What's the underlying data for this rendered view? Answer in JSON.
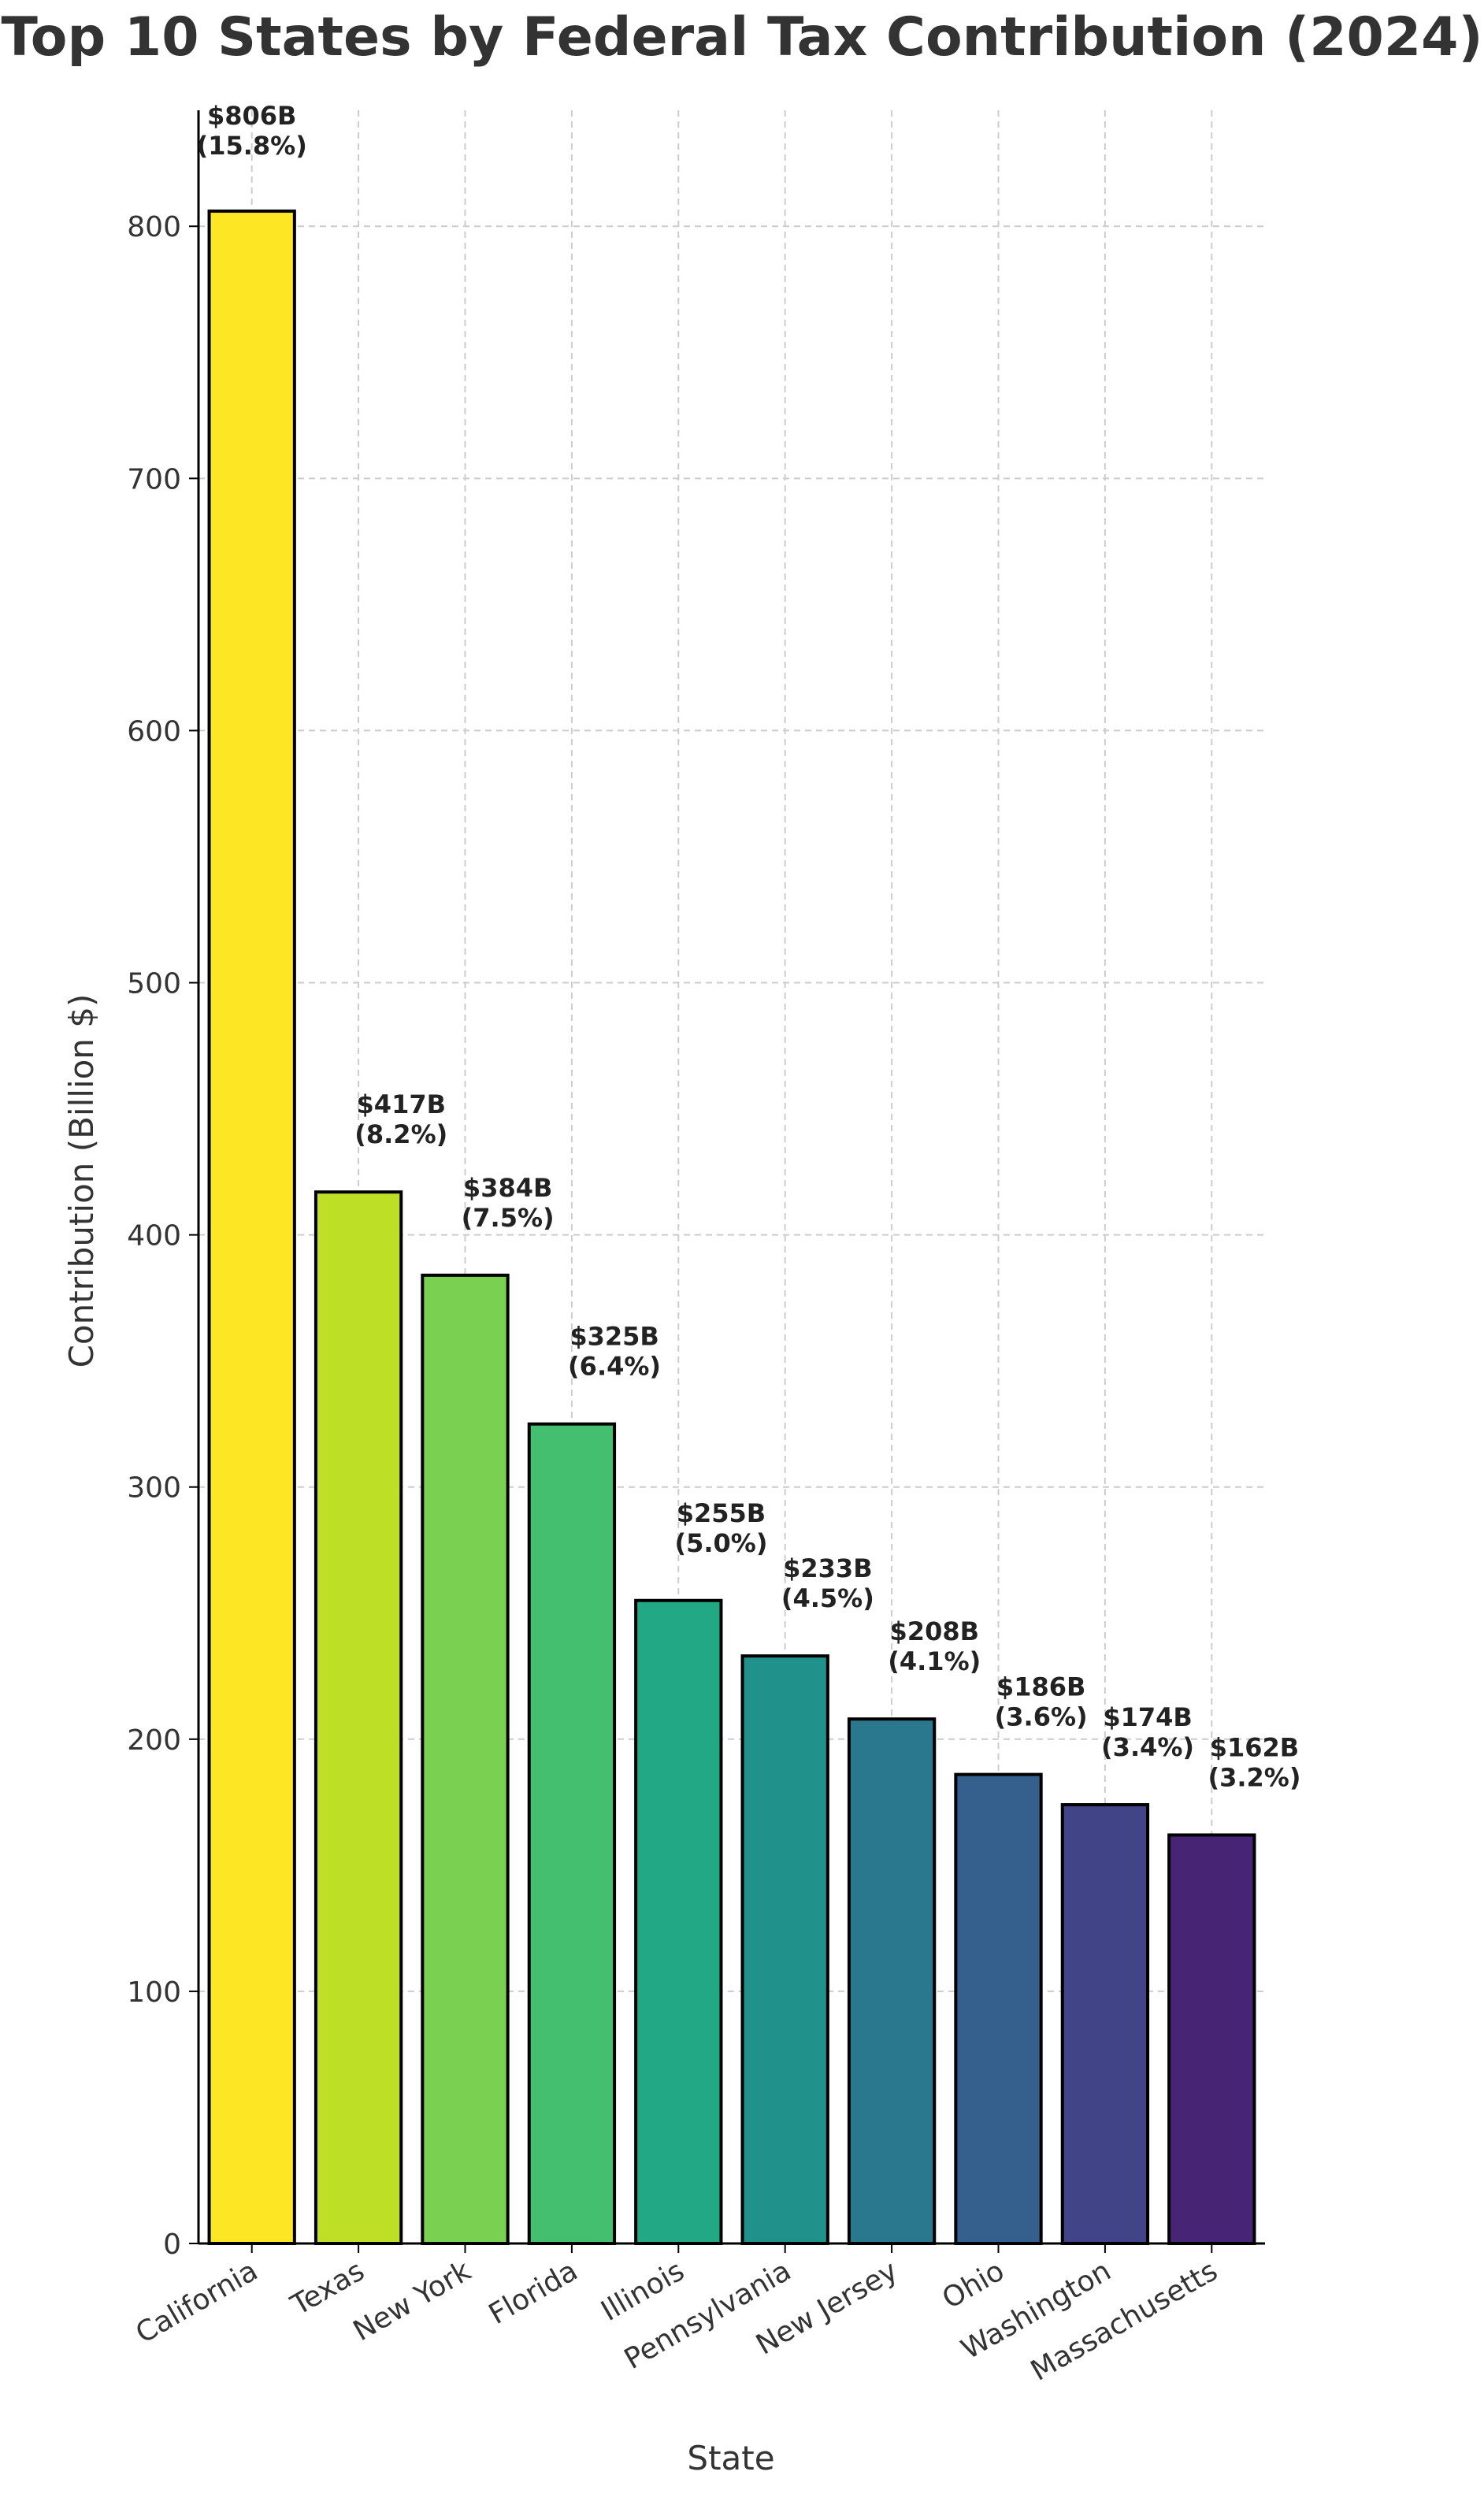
{
  "chart_data": {
    "type": "bar",
    "title": "Top 10 States by Federal Tax Contribution (2024)",
    "xlabel": "State",
    "ylabel": "Contribution (Billion $)",
    "categories": [
      "California",
      "Texas",
      "New York",
      "Florida",
      "Illinois",
      "Pennsylvania",
      "New Jersey",
      "Ohio",
      "Washington",
      "Massachusetts"
    ],
    "values": [
      806,
      417,
      384,
      325,
      255,
      233,
      208,
      186,
      174,
      162
    ],
    "value_labels": [
      "$806B",
      "$417B",
      "$384B",
      "$325B",
      "$255B",
      "$233B",
      "$208B",
      "$186B",
      "$174B",
      "$162B"
    ],
    "percent_labels": [
      "(15.8%)",
      "(8.2%)",
      "(7.5%)",
      "(6.4%)",
      "(5.0%)",
      "(4.5%)",
      "(4.1%)",
      "(3.6%)",
      "(3.4%)",
      "(3.2%)"
    ],
    "colors": [
      "#fde725",
      "#bddf26",
      "#7ad151",
      "#44bf70",
      "#22a884",
      "#21918c",
      "#2a788e",
      "#355f8d",
      "#414487",
      "#482475"
    ],
    "yticks": [
      0,
      100,
      200,
      300,
      400,
      500,
      600,
      700,
      800
    ],
    "ylim": [
      0,
      846
    ],
    "grid": true
  }
}
